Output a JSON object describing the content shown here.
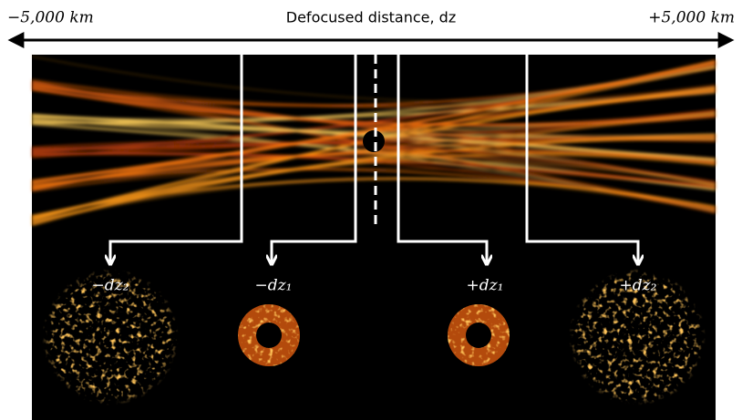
{
  "axis": {
    "left_label": "−5,000 km",
    "title": "Defocused distance, dz",
    "right_label": "+5,000 km"
  },
  "panels": [
    {
      "label": "−dz₂"
    },
    {
      "label": "−dz₁"
    },
    {
      "label": "+dz₁"
    },
    {
      "label": "+dz₂"
    }
  ]
}
